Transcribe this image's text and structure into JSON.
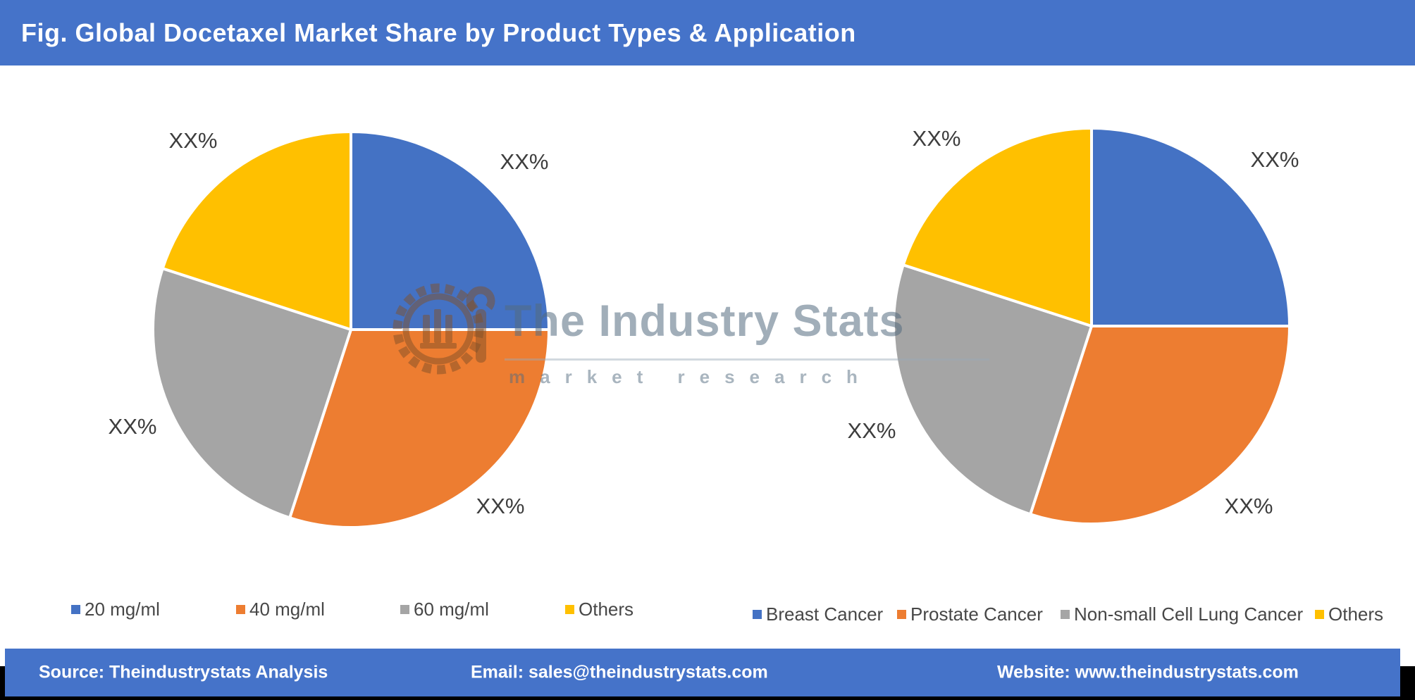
{
  "header": {
    "title": "Fig. Global Docetaxel Market Share by Product Types & Application"
  },
  "theme": {
    "accent_blue": "#4573C9",
    "slice_label_color": "#3D3D3D",
    "footer_strip_color": "#000000",
    "watermark_color": "rgba(83,107,127,0.55)"
  },
  "watermark": {
    "brand": "The Industry Stats",
    "tagline": "market research",
    "logo_icon": "gear-wrench-icon"
  },
  "chart_data": [
    {
      "type": "pie",
      "name": "Product Types",
      "categories": [
        "20 mg/ml",
        "40 mg/ml",
        "60 mg/ml",
        "Others"
      ],
      "values": [
        25,
        30,
        25,
        20
      ],
      "colors": [
        "#4472C4",
        "#ED7D31",
        "#A5A5A5",
        "#FFC000"
      ],
      "data_labels": [
        "XX%",
        "XX%",
        "XX%",
        "XX%"
      ],
      "start_angle_deg": 0,
      "direction": "clockwise",
      "legend_position": "bottom"
    },
    {
      "type": "pie",
      "name": "Application",
      "categories": [
        "Breast Cancer",
        "Prostate Cancer",
        "Non-small Cell Lung Cancer",
        "Others"
      ],
      "values": [
        25,
        30,
        25,
        20
      ],
      "colors": [
        "#4472C4",
        "#ED7D31",
        "#A5A5A5",
        "#FFC000"
      ],
      "data_labels": [
        "XX%",
        "XX%",
        "XX%",
        "XX%"
      ],
      "start_angle_deg": 0,
      "direction": "clockwise",
      "legend_position": "bottom"
    }
  ],
  "footer": {
    "source": "Source: Theindustrystats Analysis",
    "email": "Email: sales@theindustrystats.com",
    "website": "Website: www.theindustrystats.com"
  }
}
